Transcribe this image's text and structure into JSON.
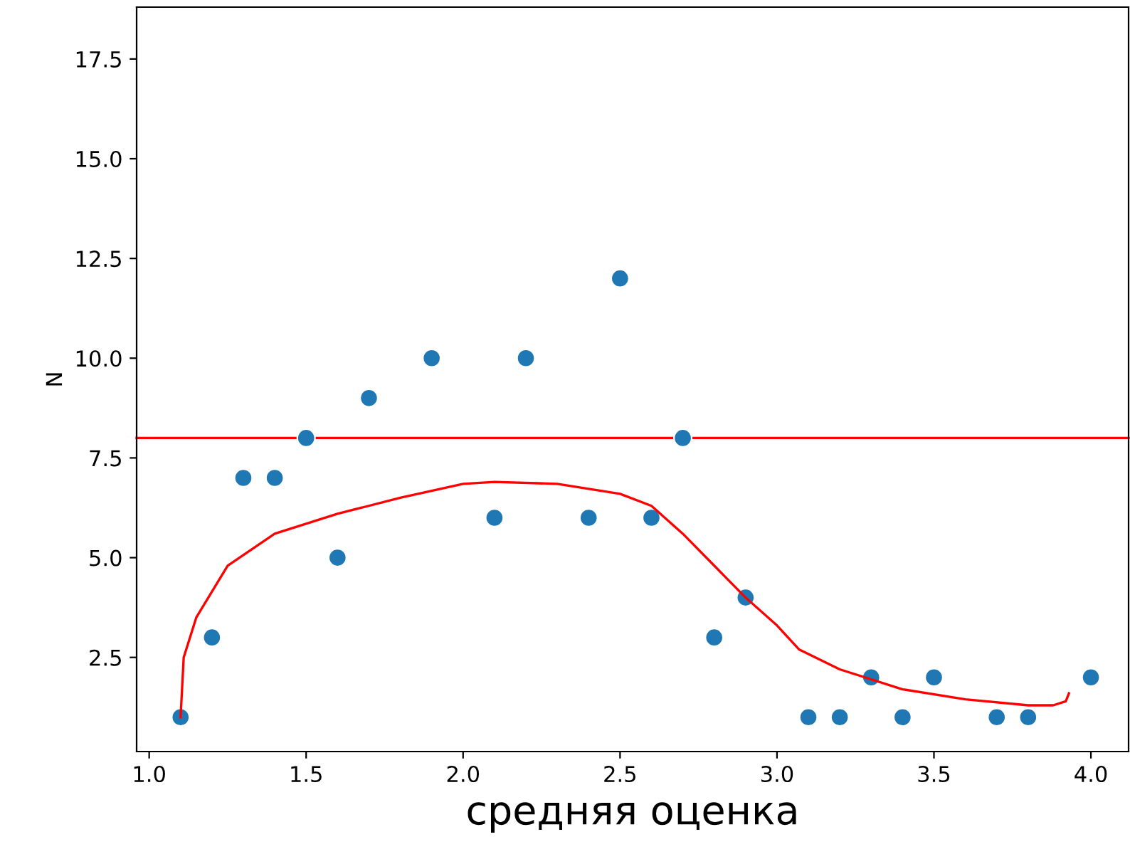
{
  "chart_data": {
    "type": "scatter",
    "xlabel": "средняя оценка",
    "ylabel": "N",
    "xlim": [
      0.96,
      4.12
    ],
    "ylim": [
      0.14,
      18.8
    ],
    "xticks": [
      {
        "value": 1.0,
        "label": "1.0"
      },
      {
        "value": 1.5,
        "label": "1.5"
      },
      {
        "value": 2.0,
        "label": "2.0"
      },
      {
        "value": 2.5,
        "label": "2.5"
      },
      {
        "value": 3.0,
        "label": "3.0"
      },
      {
        "value": 3.5,
        "label": "3.5"
      },
      {
        "value": 4.0,
        "label": "4.0"
      }
    ],
    "yticks": [
      2.5,
      {
        "value": 5.0,
        "label": "5.0"
      },
      7.5,
      {
        "value": 10.0,
        "label": "10.0"
      },
      12.5,
      {
        "value": 15.0,
        "label": "15.0"
      },
      17.5
    ],
    "grid": false,
    "marker": "circle",
    "series": [
      {
        "color": "#1f77b4",
        "x": [
          1.1,
          1.2,
          1.3,
          1.4,
          1.5,
          1.6,
          1.7,
          1.9,
          2.1,
          2.2,
          2.4,
          2.5,
          2.6,
          2.7,
          2.8,
          2.9,
          3.1,
          3.2,
          3.3,
          3.4,
          3.5,
          3.7,
          3.8,
          4.0
        ],
        "values": [
          1,
          3,
          7,
          7,
          8,
          5,
          9,
          10,
          6,
          10,
          6,
          12,
          6,
          8,
          3,
          4,
          1,
          1,
          2,
          1,
          2,
          1,
          1,
          2
        ]
      },
      {
        "type": "line",
        "color": "#ff0000",
        "marker": "none",
        "x": [
          1.1,
          1.11,
          1.15,
          1.25,
          1.4,
          1.6,
          1.8,
          2.0,
          2.1,
          2.3,
          2.5,
          2.6,
          2.7,
          2.8,
          2.9,
          3.0,
          3.07,
          3.2,
          3.4,
          3.6,
          3.8,
          3.88,
          3.92,
          3.93
        ],
        "values": [
          1.0,
          2.5,
          3.5,
          4.8,
          5.6,
          6.1,
          6.5,
          6.85,
          6.9,
          6.85,
          6.6,
          6.3,
          5.6,
          4.8,
          4.0,
          3.3,
          2.7,
          2.2,
          1.7,
          1.45,
          1.3,
          1.3,
          1.4,
          1.6
        ]
      }
    ],
    "ref_lines": [
      {
        "axis": "y",
        "value": 8,
        "color": "#ff0000"
      }
    ]
  }
}
